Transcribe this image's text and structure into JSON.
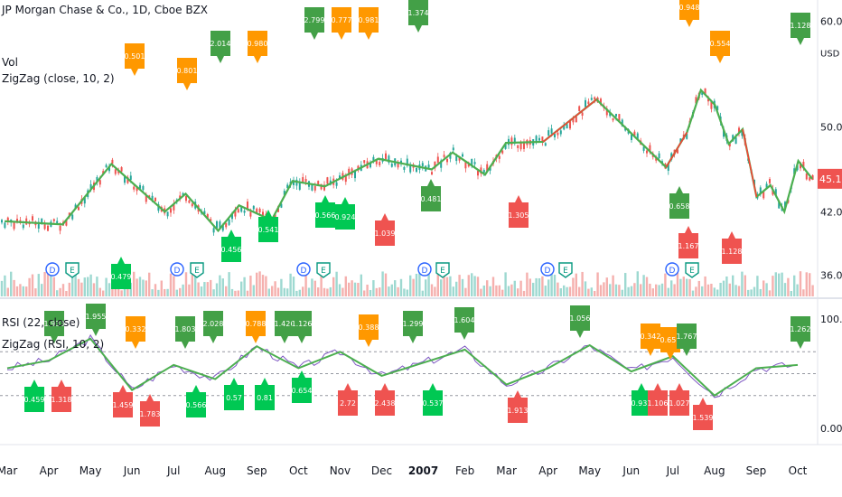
{
  "header": {
    "title": "JP Morgan Chase & Co., 1D, Cboe BZX",
    "vol_label": "Vol",
    "zigzag_label": "ZigZag (close, 10, 2)",
    "rsi_label": "RSI (22, close)",
    "rsi_zigzag_label": "ZigZag (RSI, 10, 2)"
  },
  "price_axis": {
    "currency": "USD",
    "ticks": [
      "60.00",
      "50.00",
      "45.11",
      "42.00",
      "36.00"
    ],
    "last_price": "45.11"
  },
  "rsi_axis": {
    "ticks": [
      "100.00",
      "0.00"
    ]
  },
  "time_axis": {
    "labels": [
      "Mar",
      "Apr",
      "May",
      "Jun",
      "Jul",
      "Aug",
      "Sep",
      "Oct",
      "Nov",
      "Dec",
      "2007",
      "Feb",
      "Mar",
      "Apr",
      "May",
      "Jun",
      "Jul",
      "Aug",
      "Sep",
      "Oct"
    ]
  },
  "colors": {
    "up": "#26a69a",
    "down": "#ef5350",
    "zigzag": "#4caf50",
    "zigzag_red": "#f44336",
    "label_green": "#43a047",
    "label_orange": "#ff9800",
    "label_bright_green": "#00c853",
    "label_red": "#ef5350",
    "rsi_line": "#7e57c2",
    "axis_text": "#131722"
  },
  "chart_data": [
    {
      "type": "line",
      "title": "JP Morgan Chase & Co., 1D, Cboe BZX",
      "series": [
        {
          "name": "ZigZag (close, 10, 2)",
          "x": [
            "Mar",
            "Apr",
            "May",
            "Jun",
            "Jun",
            "Jul",
            "Jul",
            "Aug",
            "Aug",
            "Sep",
            "Oct",
            "Nov",
            "Nov",
            "Dec",
            "Dec",
            "2007",
            "Feb",
            "Mar",
            "Mar",
            "May",
            "Jun",
            "Jul",
            "Jul",
            "Aug",
            "Aug",
            "Sep",
            "Oct",
            "Oct"
          ],
          "values": [
            41.1,
            40.8,
            46.5,
            42.0,
            43.7,
            40.2,
            42.6,
            41.2,
            44.9,
            44.4,
            47.0,
            46.0,
            47.6,
            45.5,
            48.5,
            48.6,
            52.6,
            46.2,
            49.5,
            53.5,
            52.1,
            48.4,
            49.8,
            43.4,
            44.5,
            42.0,
            46.8,
            45.1
          ]
        }
      ],
      "ylim": [
        34,
        62
      ],
      "annotations": [
        "2.799",
        "0.777",
        "0.981",
        "1.374",
        "0.948",
        "0.554",
        "1.128",
        "0.501",
        "2.014",
        "0.980",
        "0.801",
        "0.566",
        "0.924",
        "1.039",
        "0.481",
        "1.305",
        "0.658",
        "0.456",
        "0.541",
        "1.167",
        "1.128",
        "0.479"
      ]
    },
    {
      "type": "line",
      "title": "RSI (22, close)",
      "series": [
        {
          "name": "RSI (22, close)",
          "x": [
            "Mar",
            "Apr",
            "May",
            "Jun",
            "Jul",
            "Aug",
            "Sep",
            "Oct",
            "Nov",
            "Dec",
            "2007",
            "Feb",
            "Mar",
            "Apr",
            "May",
            "Jun",
            "Jul",
            "Aug",
            "Sep",
            "Oct"
          ],
          "values": [
            55,
            62,
            82,
            35,
            58,
            45,
            75,
            55,
            70,
            48,
            60,
            72,
            40,
            55,
            76,
            52,
            66,
            30,
            55,
            58
          ]
        }
      ],
      "ylim": [
        0,
        100
      ],
      "annotations": [
        "1.933",
        "1.955",
        "0.332",
        "1.803",
        "2.028",
        "0.788",
        "1.426",
        "1.126",
        "0.388",
        "1.299",
        "1.604",
        "1.056",
        "0.342",
        "0.659",
        "1.767",
        "1.262",
        "0.459",
        "1.318",
        "1.459",
        "1.783",
        "0.566",
        "0.57",
        "0.81",
        "0.654",
        "2.72",
        "2.438",
        "0.537",
        "1.913",
        "0.932",
        "1.106",
        "1.027",
        "1.539"
      ]
    }
  ]
}
